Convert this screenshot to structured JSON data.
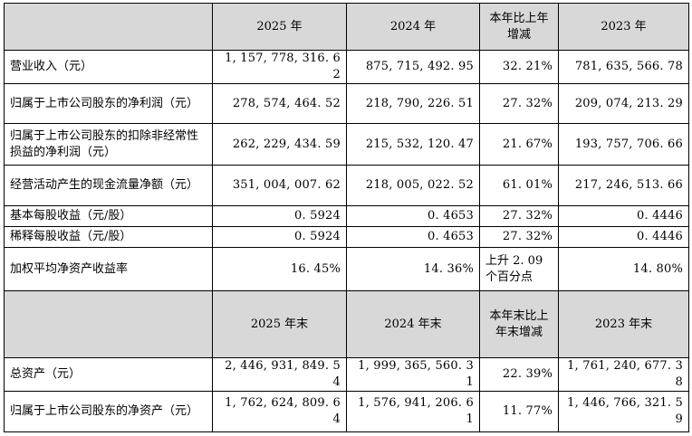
{
  "header1": {
    "blank": "",
    "cols": [
      "2025 年",
      "2024 年",
      "本年比上年增减",
      "2023 年"
    ]
  },
  "rows1": [
    {
      "label": "营业收入（元）",
      "values": [
        "1, 157, 778, 316. 62",
        "875, 715, 492. 95",
        "32. 21%",
        "781, 635, 566. 78"
      ]
    },
    {
      "label": "归属于上市公司股东的净利润（元）",
      "values": [
        "278, 574, 464. 52",
        "218, 790, 226. 51",
        "27. 32%",
        "209, 074, 213. 29"
      ]
    },
    {
      "label": "归属于上市公司股东的扣除非经常性损益的净利润（元）",
      "values": [
        "262, 229, 434. 59",
        "215, 532, 120. 47",
        "21. 67%",
        "193, 757, 706. 66"
      ]
    },
    {
      "label": "经营活动产生的现金流量净额（元）",
      "values": [
        "351, 004, 007. 62",
        "218, 005, 022. 52",
        "61. 01%",
        "217, 246, 513. 66"
      ]
    },
    {
      "label": "基本每股收益（元/股）",
      "values": [
        "0. 5924",
        "0. 4653",
        "27. 32%",
        "0. 4446"
      ]
    },
    {
      "label": "稀释每股收益（元/股）",
      "values": [
        "0. 5924",
        "0. 4653",
        "27. 32%",
        "0. 4446"
      ]
    },
    {
      "label": "加权平均净资产收益率",
      "values": [
        "16. 45%",
        "14. 36%",
        "上升 2. 09 个百分点",
        "14. 80%"
      ]
    }
  ],
  "header2": {
    "blank": "",
    "cols": [
      "2025 年末",
      "2024 年末",
      "本年末比上年末增减",
      "2023 年末"
    ]
  },
  "rows2": [
    {
      "label": "总资产（元）",
      "values": [
        "2, 446, 931, 849. 54",
        "1, 999, 365, 560. 31",
        "22. 39%",
        "1, 761, 240, 677. 38"
      ]
    },
    {
      "label": "归属于上市公司股东的净资产（元）",
      "values": [
        "1, 762, 624, 809. 64",
        "1, 576, 941, 206. 61",
        "11. 77%",
        "1, 446, 766, 321. 59"
      ]
    }
  ]
}
